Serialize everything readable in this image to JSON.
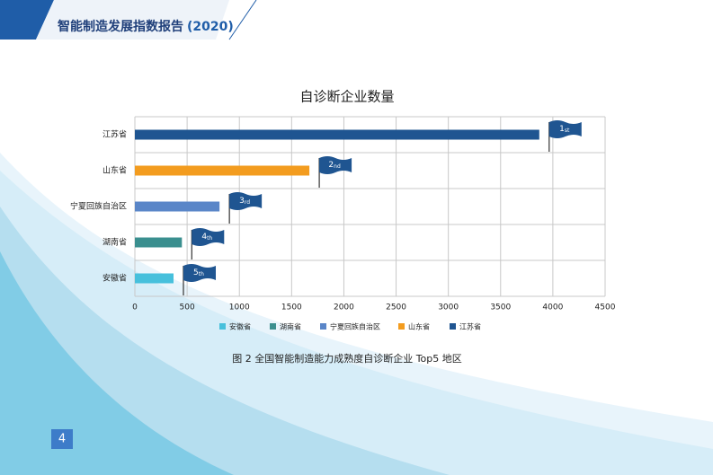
{
  "header": {
    "title": "智能制造发展指数报告",
    "year": "(2020)"
  },
  "chart_data": {
    "type": "bar",
    "orientation": "horizontal",
    "title": "自诊断企业数量",
    "categories": [
      "江苏省",
      "山东省",
      "宁夏回族自治区",
      "湖南省",
      "安徽省"
    ],
    "values": [
      3870,
      1670,
      810,
      450,
      370
    ],
    "colors": [
      "#1f5591",
      "#f39c1f",
      "#5a86c8",
      "#3a8f8f",
      "#47c0dc"
    ],
    "rank_labels": [
      {
        "rank": "1",
        "suffix": "st"
      },
      {
        "rank": "2",
        "suffix": "nd"
      },
      {
        "rank": "3",
        "suffix": "rd"
      },
      {
        "rank": "4",
        "suffix": "th"
      },
      {
        "rank": "5",
        "suffix": "th"
      }
    ],
    "xlim": [
      0,
      4500
    ],
    "xticks": [
      0,
      500,
      1000,
      1500,
      2000,
      2500,
      3000,
      3500,
      4000,
      4500
    ],
    "grid": true,
    "legend": "bottom"
  },
  "caption": "图 2 全国智能制造能力成熟度自诊断企业 Top5 地区",
  "page_number": "4"
}
